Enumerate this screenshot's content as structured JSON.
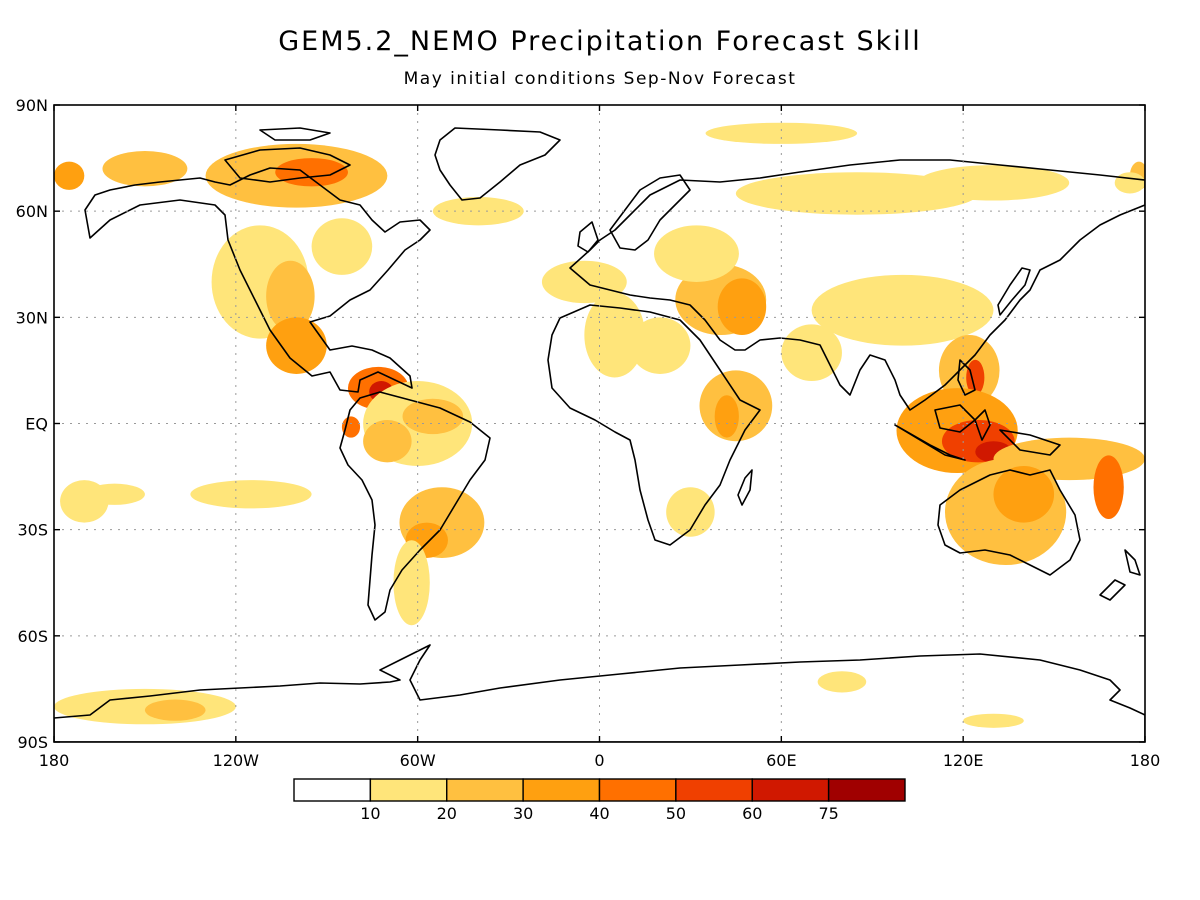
{
  "title": "GEM5.2_NEMO Precipitation Forecast Skill",
  "subtitle": "May initial conditions  Sep-Nov Forecast",
  "map": {
    "lon_range": [
      -180,
      180
    ],
    "lat_range": [
      -90,
      90
    ],
    "lat_ticks": [
      {
        "value": 90,
        "label": "90N"
      },
      {
        "value": 60,
        "label": "60N"
      },
      {
        "value": 30,
        "label": "30N"
      },
      {
        "value": 0,
        "label": "EQ"
      },
      {
        "value": -30,
        "label": "30S"
      },
      {
        "value": -60,
        "label": "60S"
      },
      {
        "value": -90,
        "label": "90S"
      }
    ],
    "lon_ticks": [
      {
        "value": -180,
        "label": "180"
      },
      {
        "value": -120,
        "label": "120W"
      },
      {
        "value": -60,
        "label": "60W"
      },
      {
        "value": 0,
        "label": "0"
      },
      {
        "value": 60,
        "label": "60E"
      },
      {
        "value": 120,
        "label": "120E"
      },
      {
        "value": 180,
        "label": "180"
      }
    ],
    "grid": "dotted"
  },
  "colorbar": {
    "levels": [
      "10",
      "20",
      "30",
      "40",
      "50",
      "60",
      "75"
    ],
    "colors": [
      "#ffffff",
      "#ffe57a",
      "#ffc040",
      "#ffa010",
      "#ff7000",
      "#f04000",
      "#d01800",
      "#a00000"
    ]
  },
  "skill_regions": [
    {
      "lon": -150,
      "lat": 72,
      "rx": 14,
      "ry": 5,
      "level": 2
    },
    {
      "lon": -100,
      "lat": 70,
      "rx": 30,
      "ry": 9,
      "level": 2
    },
    {
      "lon": -95,
      "lat": 71,
      "rx": 12,
      "ry": 4,
      "level": 4
    },
    {
      "lon": -175,
      "lat": 70,
      "rx": 5,
      "ry": 4,
      "level": 3
    },
    {
      "lon": 178,
      "lat": 70,
      "rx": 3,
      "ry": 4,
      "level": 2
    },
    {
      "lon": -112,
      "lat": 40,
      "rx": 16,
      "ry": 16,
      "level": 1
    },
    {
      "lon": -102,
      "lat": 36,
      "rx": 8,
      "ry": 10,
      "level": 2
    },
    {
      "lon": -85,
      "lat": 50,
      "rx": 10,
      "ry": 8,
      "level": 1
    },
    {
      "lon": -100,
      "lat": 22,
      "rx": 10,
      "ry": 8,
      "level": 3
    },
    {
      "lon": -73,
      "lat": 10,
      "rx": 10,
      "ry": 6,
      "level": 4
    },
    {
      "lon": -72,
      "lat": 9,
      "rx": 4,
      "ry": 3,
      "level": 6
    },
    {
      "lon": -60,
      "lat": 0,
      "rx": 18,
      "ry": 12,
      "level": 1
    },
    {
      "lon": -55,
      "lat": 2,
      "rx": 10,
      "ry": 5,
      "level": 2
    },
    {
      "lon": -70,
      "lat": -5,
      "rx": 8,
      "ry": 6,
      "level": 2
    },
    {
      "lon": -82,
      "lat": -1,
      "rx": 3,
      "ry": 3,
      "level": 4
    },
    {
      "lon": -52,
      "lat": -28,
      "rx": 14,
      "ry": 10,
      "level": 2
    },
    {
      "lon": -57,
      "lat": -33,
      "rx": 7,
      "ry": 5,
      "level": 3
    },
    {
      "lon": -62,
      "lat": -45,
      "rx": 6,
      "ry": 12,
      "level": 1
    },
    {
      "lon": -115,
      "lat": -20,
      "rx": 20,
      "ry": 4,
      "level": 1
    },
    {
      "lon": -160,
      "lat": -20,
      "rx": 10,
      "ry": 3,
      "level": 1
    },
    {
      "lon": -170,
      "lat": -22,
      "rx": 8,
      "ry": 6,
      "level": 1
    },
    {
      "lon": -40,
      "lat": 60,
      "rx": 15,
      "ry": 4,
      "level": 1
    },
    {
      "lon": -5,
      "lat": 40,
      "rx": 14,
      "ry": 6,
      "level": 1
    },
    {
      "lon": 40,
      "lat": 35,
      "rx": 15,
      "ry": 10,
      "level": 2
    },
    {
      "lon": 47,
      "lat": 33,
      "rx": 8,
      "ry": 8,
      "level": 3
    },
    {
      "lon": 32,
      "lat": 48,
      "rx": 14,
      "ry": 8,
      "level": 1
    },
    {
      "lon": 45,
      "lat": 5,
      "rx": 12,
      "ry": 10,
      "level": 2
    },
    {
      "lon": 42,
      "lat": 2,
      "rx": 4,
      "ry": 6,
      "level": 3
    },
    {
      "lon": 20,
      "lat": 22,
      "rx": 10,
      "ry": 8,
      "level": 1
    },
    {
      "lon": 5,
      "lat": 25,
      "rx": 10,
      "ry": 12,
      "level": 1
    },
    {
      "lon": 30,
      "lat": -25,
      "rx": 8,
      "ry": 7,
      "level": 1
    },
    {
      "lon": 85,
      "lat": 65,
      "rx": 40,
      "ry": 6,
      "level": 1
    },
    {
      "lon": 60,
      "lat": 82,
      "rx": 25,
      "ry": 3,
      "level": 1
    },
    {
      "lon": 100,
      "lat": 32,
      "rx": 30,
      "ry": 10,
      "level": 1
    },
    {
      "lon": 70,
      "lat": 20,
      "rx": 10,
      "ry": 8,
      "level": 1
    },
    {
      "lon": 122,
      "lat": 15,
      "rx": 10,
      "ry": 10,
      "level": 2
    },
    {
      "lon": 124,
      "lat": 13,
      "rx": 3,
      "ry": 5,
      "level": 5
    },
    {
      "lon": 118,
      "lat": -2,
      "rx": 20,
      "ry": 12,
      "level": 3
    },
    {
      "lon": 125,
      "lat": -5,
      "rx": 12,
      "ry": 6,
      "level": 5
    },
    {
      "lon": 130,
      "lat": -8,
      "rx": 6,
      "ry": 3,
      "level": 6
    },
    {
      "lon": 155,
      "lat": -10,
      "rx": 25,
      "ry": 6,
      "level": 2
    },
    {
      "lon": 168,
      "lat": -18,
      "rx": 5,
      "ry": 9,
      "level": 4
    },
    {
      "lon": 134,
      "lat": -25,
      "rx": 20,
      "ry": 15,
      "level": 2
    },
    {
      "lon": 140,
      "lat": -20,
      "rx": 10,
      "ry": 8,
      "level": 3
    },
    {
      "lon": 130,
      "lat": 68,
      "rx": 25,
      "ry": 5,
      "level": 1
    },
    {
      "lon": -150,
      "lat": -80,
      "rx": 30,
      "ry": 5,
      "level": 1
    },
    {
      "lon": -140,
      "lat": -81,
      "rx": 10,
      "ry": 3,
      "level": 2
    },
    {
      "lon": 80,
      "lat": -73,
      "rx": 8,
      "ry": 3,
      "level": 1
    },
    {
      "lon": 130,
      "lat": -84,
      "rx": 10,
      "ry": 2,
      "level": 1
    },
    {
      "lon": 175,
      "lat": 68,
      "rx": 5,
      "ry": 3,
      "level": 1
    }
  ]
}
